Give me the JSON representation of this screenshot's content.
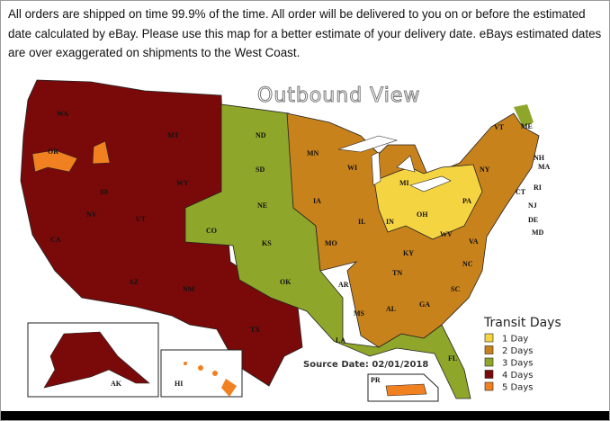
{
  "intro_text": "All orders are shipped on time 99.9% of the time.  All order will be delivered to you on or before the estimated date calculated by eBay.  Please use this map for a better estimate of your delivery date.  eBays estimated dates are over exaggerated on shipments to the West Coast.",
  "map": {
    "title": "Outbound View",
    "source_date": "Source Date: 02/01/2018",
    "legend": {
      "title": "Transit Days",
      "items": [
        {
          "label": "1 Day",
          "days": 1,
          "color": "#f5d442"
        },
        {
          "label": "2 Days",
          "days": 2,
          "color": "#c8821c"
        },
        {
          "label": "3 Days",
          "days": 3,
          "color": "#8ea62a"
        },
        {
          "label": "4 Days",
          "days": 4,
          "color": "#7a0a0a"
        },
        {
          "label": "5 Days",
          "days": 5,
          "color": "#f08020"
        }
      ]
    },
    "states": [
      {
        "abbr": "WA",
        "days": 4
      },
      {
        "abbr": "OR",
        "days": 4
      },
      {
        "abbr": "CA",
        "days": 4
      },
      {
        "abbr": "NV",
        "days": 4
      },
      {
        "abbr": "ID",
        "days": 4
      },
      {
        "abbr": "MT",
        "days": 4
      },
      {
        "abbr": "WY",
        "days": 4
      },
      {
        "abbr": "UT",
        "days": 4
      },
      {
        "abbr": "AZ",
        "days": 4
      },
      {
        "abbr": "NM",
        "days": 4
      },
      {
        "abbr": "TX",
        "days": 4
      },
      {
        "abbr": "CO",
        "days": 3
      },
      {
        "abbr": "ND",
        "days": 3
      },
      {
        "abbr": "SD",
        "days": 3
      },
      {
        "abbr": "NE",
        "days": 3
      },
      {
        "abbr": "KS",
        "days": 3
      },
      {
        "abbr": "OK",
        "days": 3
      },
      {
        "abbr": "AR",
        "days": 3
      },
      {
        "abbr": "LA",
        "days": 3
      },
      {
        "abbr": "MS",
        "days": 3
      },
      {
        "abbr": "FL",
        "days": 3
      },
      {
        "abbr": "MN",
        "days": 2
      },
      {
        "abbr": "WI",
        "days": 2
      },
      {
        "abbr": "IA",
        "days": 2
      },
      {
        "abbr": "IL",
        "days": 2
      },
      {
        "abbr": "MO",
        "days": 2
      },
      {
        "abbr": "MI",
        "days": 1
      },
      {
        "abbr": "IN",
        "days": 1
      },
      {
        "abbr": "OH",
        "days": 1
      },
      {
        "abbr": "KY",
        "days": 2
      },
      {
        "abbr": "WV",
        "days": 1
      },
      {
        "abbr": "PA",
        "days": 1
      },
      {
        "abbr": "TN",
        "days": 2
      },
      {
        "abbr": "AL",
        "days": 2
      },
      {
        "abbr": "GA",
        "days": 2
      },
      {
        "abbr": "SC",
        "days": 2
      },
      {
        "abbr": "NC",
        "days": 2
      },
      {
        "abbr": "VA",
        "days": 2
      },
      {
        "abbr": "NY",
        "days": 2
      },
      {
        "abbr": "VT",
        "days": 2
      },
      {
        "abbr": "ME",
        "days": 2
      },
      {
        "abbr": "NH",
        "days": 2
      },
      {
        "abbr": "MA",
        "days": 2
      },
      {
        "abbr": "RI",
        "days": 2
      },
      {
        "abbr": "CT",
        "days": 2
      },
      {
        "abbr": "NJ",
        "days": 2
      },
      {
        "abbr": "DE",
        "days": 2
      },
      {
        "abbr": "MD",
        "days": 2
      },
      {
        "abbr": "AK",
        "days": 4
      },
      {
        "abbr": "HI",
        "days": 5
      },
      {
        "abbr": "PR",
        "days": 5
      }
    ]
  }
}
